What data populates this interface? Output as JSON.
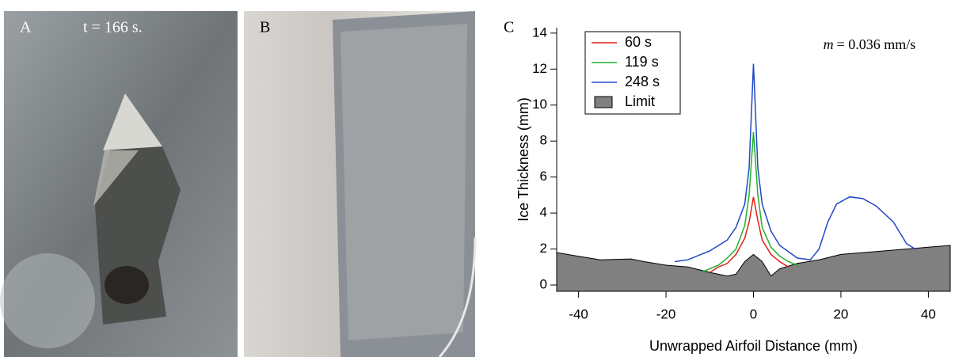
{
  "panels": {
    "a_label": "A",
    "a_time": "t = 166 s.",
    "b_label": "B",
    "c_label": "C"
  },
  "chart_data": {
    "type": "line",
    "x_label": "Unwrapped Airfoil Distance (mm)",
    "y_label": "Ice Thickness (mm)",
    "annotation_var": "m",
    "annotation_text": "= 0.036 mm/s",
    "xlim": [
      -45,
      45
    ],
    "xticks": [
      -40,
      -20,
      0,
      20,
      40
    ],
    "ylim": [
      -0.35,
      14.3
    ],
    "yticks": [
      0,
      2,
      4,
      6,
      8,
      10,
      12,
      14
    ],
    "legend": "top-left",
    "series": [
      {
        "name": "60 s",
        "color": "#e0201b",
        "fill": false,
        "x": [
          -10,
          -8,
          -6,
          -4,
          -2,
          -1,
          0,
          1,
          2,
          4,
          6,
          8
        ],
        "values": [
          0.7,
          1.0,
          1.2,
          1.7,
          2.6,
          3.5,
          4.9,
          3.6,
          2.5,
          1.7,
          1.3,
          1.0
        ]
      },
      {
        "name": "119 s",
        "color": "#22b02a",
        "fill": false,
        "x": [
          -12,
          -8,
          -6,
          -4,
          -2,
          -1,
          0,
          1,
          2,
          4,
          6,
          8,
          10
        ],
        "values": [
          0.7,
          1.1,
          1.5,
          2.0,
          3.3,
          5.0,
          8.5,
          5.0,
          3.2,
          2.1,
          1.6,
          1.3,
          1.1
        ]
      },
      {
        "name": "248 s",
        "color": "#1f48c8",
        "fill": false,
        "x": [
          -18,
          -15,
          -10,
          -6,
          -4,
          -2,
          -1,
          0,
          1,
          2,
          4,
          6,
          10,
          13,
          15,
          17,
          19,
          22,
          25,
          28,
          32,
          35,
          37
        ],
        "values": [
          1.3,
          1.4,
          1.9,
          2.5,
          3.2,
          4.5,
          6.5,
          12.3,
          6.5,
          4.5,
          3.0,
          2.2,
          1.5,
          1.4,
          2.0,
          3.5,
          4.5,
          4.9,
          4.8,
          4.4,
          3.5,
          2.3,
          2.0
        ]
      },
      {
        "name": "Limit",
        "color": "#808080",
        "fill": true,
        "x": [
          -45,
          -40,
          -35,
          -28,
          -25,
          -20,
          -15,
          -10,
          -6,
          -4,
          -2,
          0,
          2,
          4,
          6,
          10,
          15,
          20,
          25,
          30,
          35,
          40,
          45
        ],
        "values": [
          1.8,
          1.6,
          1.4,
          1.45,
          1.3,
          1.1,
          1.0,
          0.7,
          0.5,
          0.6,
          1.3,
          1.7,
          1.3,
          0.5,
          0.9,
          1.2,
          1.4,
          1.7,
          1.8,
          1.9,
          2.0,
          2.1,
          2.2
        ]
      }
    ]
  }
}
